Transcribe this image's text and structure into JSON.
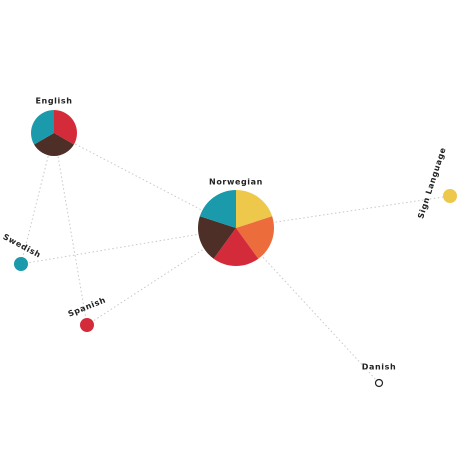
{
  "nodes": [
    {
      "label": "English",
      "slices": [
        {
          "color": "#d42b3b",
          "value": 1
        },
        {
          "color": "#4d2f28",
          "value": 1
        },
        {
          "color": "#1a9aab",
          "value": 1
        }
      ]
    },
    {
      "label": "Norwegian",
      "slices": [
        {
          "color": "#edc84a",
          "value": 1
        },
        {
          "color": "#ec6d3b",
          "value": 1
        },
        {
          "color": "#d42b3b",
          "value": 1
        },
        {
          "color": "#4d2f28",
          "value": 1
        },
        {
          "color": "#1a9aab",
          "value": 1
        }
      ]
    },
    {
      "label": "Sign Language",
      "color": "#edc84a"
    },
    {
      "label": "Swedish",
      "color": "#1a9aab"
    },
    {
      "label": "Spanish",
      "color": "#d42b3b"
    },
    {
      "label": "Danish",
      "color": "#ffffff"
    }
  ]
}
